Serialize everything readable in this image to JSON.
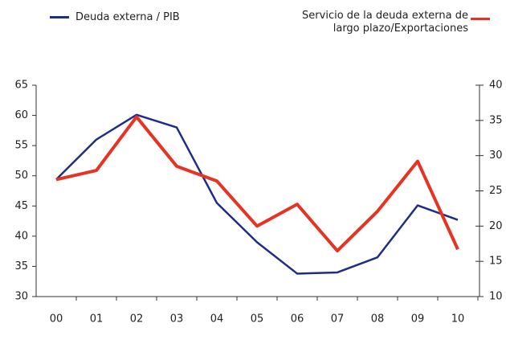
{
  "chart_data": {
    "type": "line",
    "categories": [
      "00",
      "01",
      "02",
      "03",
      "04",
      "05",
      "06",
      "07",
      "08",
      "09",
      "10"
    ],
    "series": [
      {
        "name": "Deuda externa /  PIB",
        "color": "#1f2d86",
        "values": [
          49.4,
          56,
          60.1,
          58,
          45.5,
          39,
          33.8,
          34,
          36.5,
          45.1,
          42.7
        ]
      },
      {
        "name": "Servicio de la deuda externa de largo plazo/Exportaciones",
        "color": "#e63323",
        "axis": "y2",
        "values": [
          26.6,
          27.9,
          35.5,
          28.5,
          26.4,
          20,
          23.1,
          16.5,
          22.1,
          29.2,
          16.7
        ]
      }
    ],
    "ylim": [
      30,
      65
    ],
    "yticks": [
      30,
      35,
      40,
      45,
      50,
      55,
      60,
      65
    ],
    "y2lim": [
      10,
      40
    ],
    "y2ticks": [
      10,
      15,
      20,
      25,
      30,
      35,
      40
    ],
    "grid": false
  }
}
